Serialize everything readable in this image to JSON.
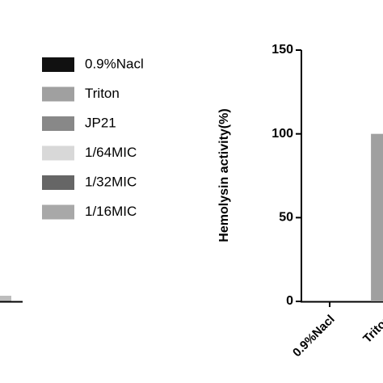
{
  "chart_data": {
    "type": "bar",
    "y_label": "Hemolysin activity(%)",
    "categories": [
      "0.9%Nacl",
      "Triton"
    ],
    "values": [
      0,
      100
    ],
    "color": "#a0a0a0",
    "ylim": [
      0,
      150
    ],
    "yticks": [
      0,
      50,
      100,
      150
    ],
    "legend": [
      {
        "name": "0.9%Nacl",
        "color": "#111111"
      },
      {
        "name": "Triton",
        "color": "#a0a0a0"
      },
      {
        "name": "JP21",
        "color": "#888888"
      },
      {
        "name": "1/64MIC",
        "color": "#d8d8d8"
      },
      {
        "name": "1/32MIC",
        "color": "#666666"
      },
      {
        "name": "1/16MIC",
        "color": "#a8a8a8"
      }
    ]
  }
}
